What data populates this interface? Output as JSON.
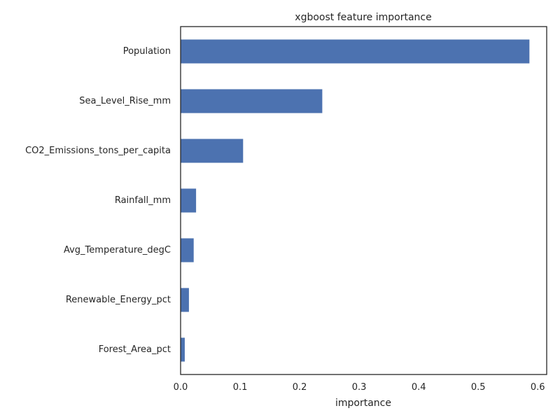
{
  "chart_data": {
    "type": "bar",
    "orientation": "horizontal",
    "title": "xgboost feature importance",
    "xlabel": "importance",
    "ylabel": "",
    "categories": [
      "Population",
      "Sea_Level_Rise_mm",
      "CO2_Emissions_tons_per_capita",
      "Rainfall_mm",
      "Avg_Temperature_degC",
      "Renewable_Energy_pct",
      "Forest_Area_pct"
    ],
    "values": [
      0.586,
      0.238,
      0.105,
      0.026,
      0.022,
      0.014,
      0.007
    ],
    "xlim": [
      0,
      0.615
    ],
    "xticks": [
      0.0,
      0.1,
      0.2,
      0.3,
      0.4,
      0.5,
      0.6
    ],
    "xtick_labels": [
      "0.0",
      "0.1",
      "0.2",
      "0.3",
      "0.4",
      "0.5",
      "0.6"
    ],
    "bar_color": "#4c72b0",
    "grid": false,
    "legend": "none"
  }
}
